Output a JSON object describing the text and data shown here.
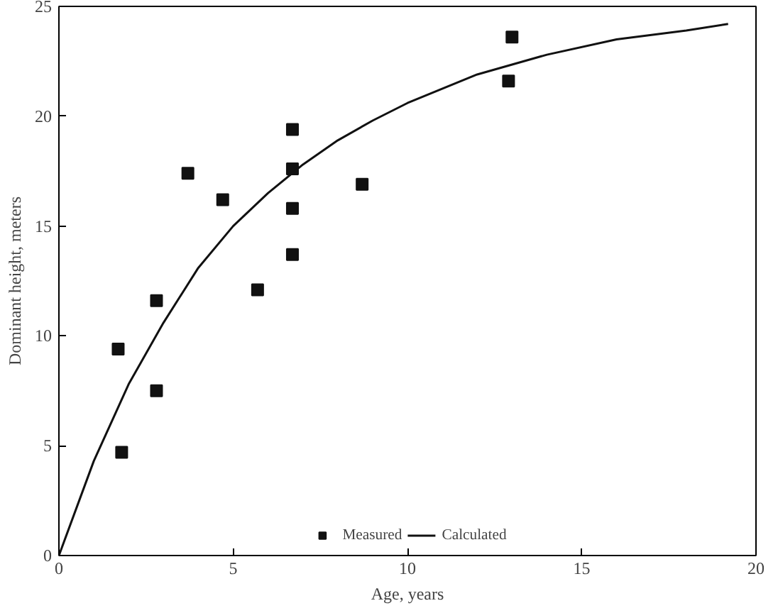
{
  "chart_data": {
    "type": "scatter",
    "xlabel": "Age, years",
    "ylabel": "Dominant height, meters",
    "xlim": [
      0,
      20
    ],
    "ylim": [
      0,
      25
    ],
    "xticks": [
      0,
      5,
      10,
      15,
      20
    ],
    "yticks": [
      0,
      5,
      10,
      15,
      20,
      25
    ],
    "grid": false,
    "legend": "bottom",
    "series": [
      {
        "name": "Measured",
        "type": "scatter",
        "marker": "square",
        "color": "#111111",
        "x": [
          1.7,
          1.8,
          2.8,
          2.8,
          3.7,
          4.7,
          5.7,
          6.7,
          6.7,
          6.7,
          6.7,
          8.7,
          13.0,
          12.9
        ],
        "values": [
          9.4,
          4.7,
          11.6,
          7.5,
          17.4,
          16.2,
          12.1,
          19.4,
          17.6,
          15.8,
          13.7,
          16.9,
          23.6,
          21.6
        ]
      },
      {
        "name": "Calculated",
        "type": "line",
        "line_style": "solid",
        "color": "#111111",
        "x": [
          0,
          1,
          2,
          3,
          4,
          5,
          6,
          7,
          8,
          9,
          10,
          12,
          14,
          16,
          18,
          19.2
        ],
        "values": [
          0,
          4.3,
          7.8,
          10.6,
          13.1,
          15.0,
          16.5,
          17.8,
          18.9,
          19.8,
          20.6,
          21.9,
          22.8,
          23.5,
          23.9,
          24.2
        ]
      }
    ]
  }
}
